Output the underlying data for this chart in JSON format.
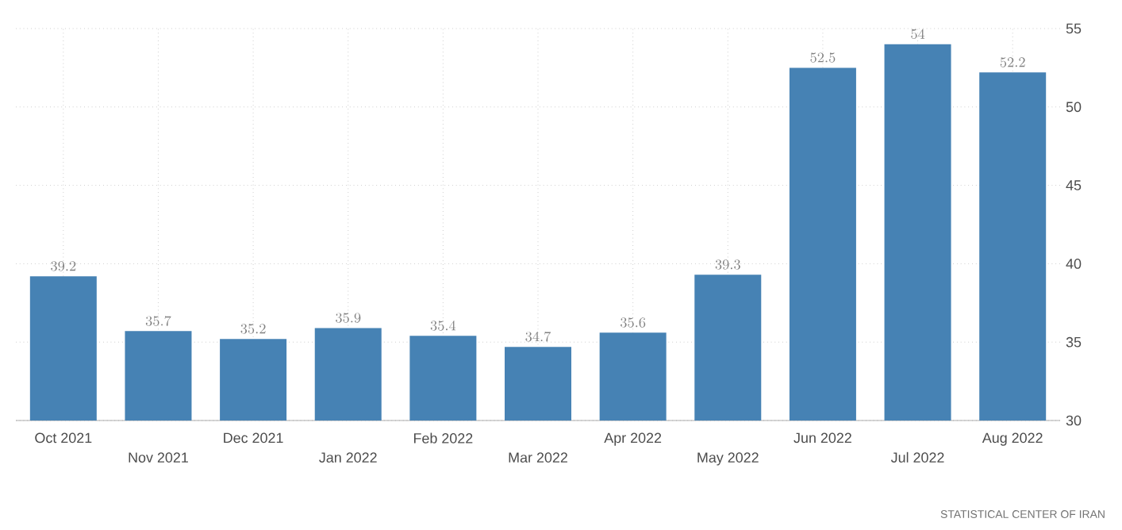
{
  "chart_data": {
    "type": "bar",
    "categories": [
      "Oct 2021",
      "Nov 2021",
      "Dec 2021",
      "Jan 2022",
      "Feb 2022",
      "Mar 2022",
      "Apr 2022",
      "May 2022",
      "Jun 2022",
      "Jul 2022",
      "Aug 2022"
    ],
    "values": [
      39.2,
      35.7,
      35.2,
      35.9,
      35.4,
      34.7,
      35.6,
      39.3,
      52.5,
      54,
      52.2
    ],
    "color": "#4682b4",
    "ylim": [
      30,
      55
    ],
    "yticks": [
      30,
      35,
      40,
      45,
      50,
      55
    ],
    "grid": true,
    "data_labels": true,
    "annotations": [
      "STATISTICAL CENTER OF IRAN"
    ]
  }
}
